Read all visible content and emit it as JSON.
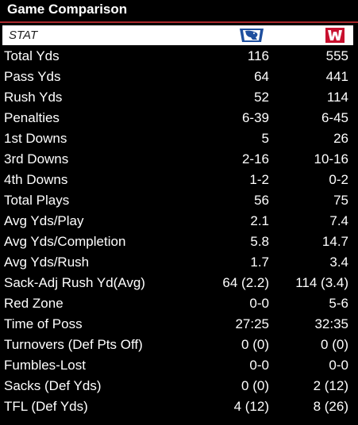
{
  "header": {
    "title": "Game Comparison",
    "stat_column": "STAT",
    "away_logo_icon": "eiu-panther-logo-icon",
    "home_logo_icon": "wisconsin-w-logo-icon",
    "accent_color": "#a8282c",
    "away_logo_color": "#1f4f9e",
    "home_logo_color": "#c8102e"
  },
  "rows": [
    {
      "stat": "Total Yds",
      "away": "116",
      "home": "555"
    },
    {
      "stat": "Pass Yds",
      "away": "64",
      "home": "441"
    },
    {
      "stat": "Rush Yds",
      "away": "52",
      "home": "114"
    },
    {
      "stat": "Penalties",
      "away": "6-39",
      "home": "6-45"
    },
    {
      "stat": "1st Downs",
      "away": "5",
      "home": "26"
    },
    {
      "stat": "3rd Downs",
      "away": "2-16",
      "home": "10-16"
    },
    {
      "stat": "4th Downs",
      "away": "1-2",
      "home": "0-2"
    },
    {
      "stat": "Total Plays",
      "away": "56",
      "home": "75"
    },
    {
      "stat": "Avg Yds/Play",
      "away": "2.1",
      "home": "7.4"
    },
    {
      "stat": "Avg Yds/Completion",
      "away": "5.8",
      "home": "14.7"
    },
    {
      "stat": "Avg Yds/Rush",
      "away": "1.7",
      "home": "3.4"
    },
    {
      "stat": "Sack-Adj Rush Yd(Avg)",
      "away": "64 (2.2)",
      "home": "114 (3.4)"
    },
    {
      "stat": "Red Zone",
      "away": "0-0",
      "home": "5-6"
    },
    {
      "stat": "Time of Poss",
      "away": "27:25",
      "home": "32:35"
    },
    {
      "stat": "Turnovers (Def Pts Off)",
      "away": "0 (0)",
      "home": "0 (0)"
    },
    {
      "stat": "Fumbles-Lost",
      "away": "0-0",
      "home": "0-0"
    },
    {
      "stat": "Sacks (Def Yds)",
      "away": "0 (0)",
      "home": "2 (12)"
    },
    {
      "stat": "TFL (Def Yds)",
      "away": "4 (12)",
      "home": "8 (26)"
    }
  ]
}
